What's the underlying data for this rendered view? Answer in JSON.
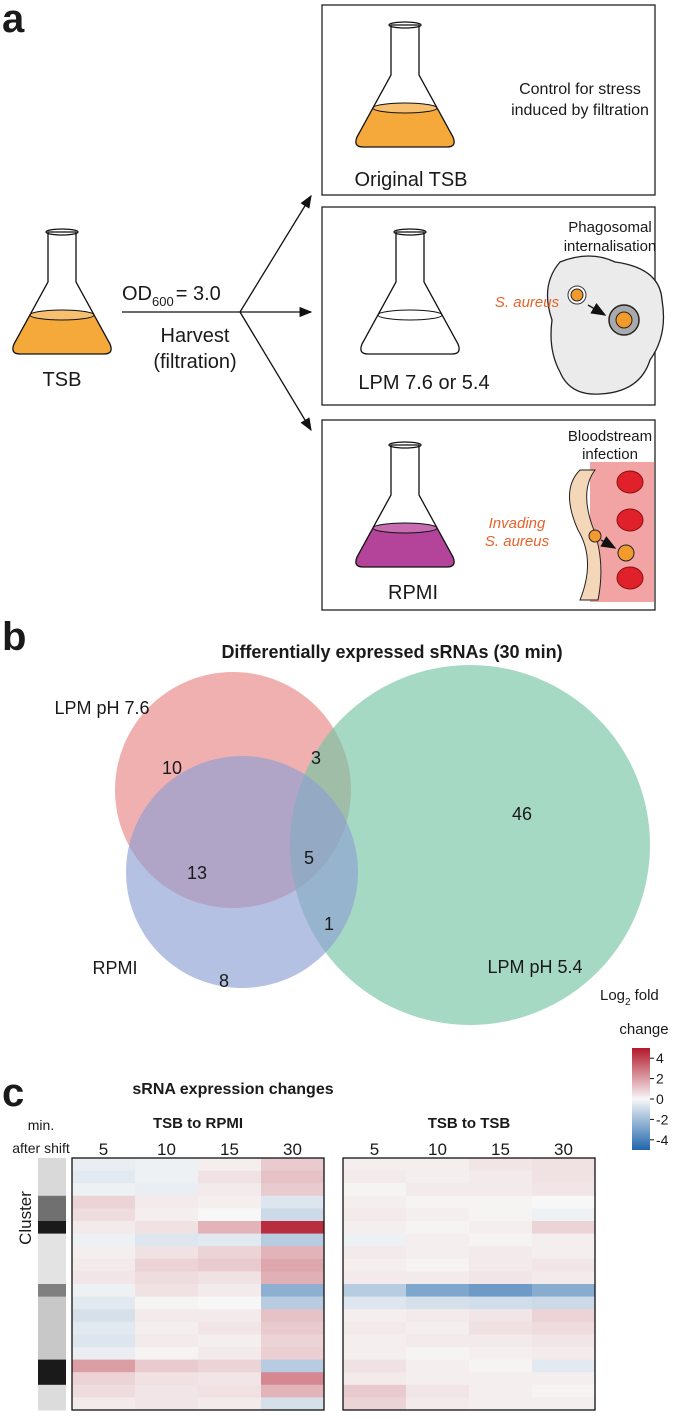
{
  "panel_labels": [
    "a",
    "b",
    "c"
  ],
  "panel_a": {
    "start_flask": "TSB",
    "od_text": "OD",
    "od_subscript": "600",
    "od_value": "= 3.0",
    "harvest": [
      "Harvest",
      "(filtration)"
    ],
    "box1": {
      "note": [
        "Control for stress",
        "induced by filtration"
      ],
      "flask": "Original TSB"
    },
    "box2": {
      "note": [
        "Phagosomal",
        "internalisation"
      ],
      "organism": "S. aureus",
      "flask": "LPM 7.6 or 5.4"
    },
    "box3": {
      "note": [
        "Bloodstream",
        "infection"
      ],
      "organism": [
        "Invading",
        "S. aureus"
      ],
      "flask": "RPMI"
    }
  },
  "chart_data": [
    {
      "type": "venn",
      "title": "Differentially expressed sRNAs (30 min)",
      "sets": [
        {
          "name": "LPM pH 7.6",
          "color": "#e88585"
        },
        {
          "name": "LPM pH 5.4",
          "color": "#74c4a4"
        },
        {
          "name": "RPMI",
          "color": "#8d9fd3"
        }
      ],
      "regions": [
        {
          "sets": [
            "LPM pH 7.6"
          ],
          "value": 10
        },
        {
          "sets": [
            "LPM pH 7.6",
            "LPM pH 5.4"
          ],
          "value": 3
        },
        {
          "sets": [
            "LPM pH 5.4"
          ],
          "value": 46
        },
        {
          "sets": [
            "LPM pH 7.6",
            "RPMI"
          ],
          "value": 13
        },
        {
          "sets": [
            "LPM pH 7.6",
            "LPM pH 5.4",
            "RPMI"
          ],
          "value": 5
        },
        {
          "sets": [
            "LPM pH 5.4",
            "RPMI"
          ],
          "value": 1
        },
        {
          "sets": [
            "RPMI"
          ],
          "value": 8
        }
      ]
    },
    {
      "type": "heatmap",
      "title": "sRNA expression changes",
      "column_header": [
        "min.",
        "after shift"
      ],
      "columns": [
        "5",
        "10",
        "15",
        "30"
      ],
      "row_axis_label": "Cluster",
      "row_cluster_colors": [
        "#d9d9d9",
        "#d9d9d9",
        "#d9d9d9",
        "#707070",
        "#707070",
        "#1a1a1a",
        "#e3e3e3",
        "#e3e3e3",
        "#e3e3e3",
        "#e3e3e3",
        "#808080",
        "#c8c8c8",
        "#c8c8c8",
        "#c8c8c8",
        "#c8c8c8",
        "#c8c8c8",
        "#1a1a1a",
        "#1a1a1a",
        "#dcdcdc",
        "#dcdcdc"
      ],
      "panels": [
        {
          "title": "TSB to RPMI",
          "values": [
            [
              -0.3,
              -0.2,
              0.2,
              1.0
            ],
            [
              -0.5,
              -0.2,
              0.5,
              1.2
            ],
            [
              -0.2,
              -0.3,
              0.3,
              1.0
            ],
            [
              0.8,
              0.3,
              0.2,
              -0.6
            ],
            [
              0.6,
              0.2,
              0.0,
              -1.0
            ],
            [
              0.3,
              0.5,
              1.5,
              4.5
            ],
            [
              -0.2,
              -0.6,
              -0.5,
              -1.5
            ],
            [
              0.2,
              0.5,
              0.8,
              1.5
            ],
            [
              0.3,
              0.8,
              1.0,
              1.8
            ],
            [
              0.4,
              0.6,
              0.5,
              1.6
            ],
            [
              -0.2,
              0.5,
              0.3,
              -2.5
            ],
            [
              -0.5,
              0.1,
              0.0,
              -1.5
            ],
            [
              -0.8,
              0.3,
              0.3,
              1.2
            ],
            [
              -0.5,
              0.2,
              0.4,
              1.0
            ],
            [
              -0.6,
              0.3,
              0.2,
              0.8
            ],
            [
              -0.3,
              0.1,
              0.3,
              0.9
            ],
            [
              2.0,
              1.0,
              0.8,
              -1.5
            ],
            [
              0.8,
              0.5,
              0.4,
              2.5
            ],
            [
              0.6,
              0.4,
              0.5,
              1.5
            ],
            [
              0.3,
              0.4,
              0.3,
              -0.8
            ]
          ]
        },
        {
          "title": "TSB to TSB",
          "values": [
            [
              0.2,
              0.2,
              0.4,
              0.5
            ],
            [
              0.3,
              0.2,
              0.3,
              0.5
            ],
            [
              0.1,
              0.3,
              0.3,
              0.4
            ],
            [
              0.2,
              0.1,
              0.1,
              0.0
            ],
            [
              0.3,
              0.2,
              0.1,
              -0.2
            ],
            [
              0.2,
              0.1,
              0.2,
              0.8
            ],
            [
              -0.2,
              0.2,
              0.1,
              0.2
            ],
            [
              0.3,
              0.2,
              0.3,
              0.2
            ],
            [
              0.2,
              0.1,
              0.3,
              0.4
            ],
            [
              0.3,
              0.3,
              0.4,
              0.3
            ],
            [
              -1.5,
              -2.8,
              -3.2,
              -2.6
            ],
            [
              -0.6,
              -0.8,
              -0.9,
              -1.0
            ],
            [
              0.2,
              0.3,
              0.4,
              0.8
            ],
            [
              0.3,
              0.2,
              0.5,
              0.6
            ],
            [
              0.2,
              0.3,
              0.3,
              0.4
            ],
            [
              0.2,
              0.1,
              0.2,
              0.3
            ],
            [
              0.5,
              0.2,
              0.1,
              -0.5
            ],
            [
              0.3,
              0.2,
              0.2,
              0.2
            ],
            [
              1.0,
              0.4,
              0.2,
              0.1
            ],
            [
              0.8,
              0.3,
              0.2,
              0.2
            ]
          ]
        }
      ],
      "colorbar_title": {
        "text": "Log",
        "subscript": "2",
        "after": "fold",
        "line2": "change"
      },
      "clim": [
        -5,
        5
      ],
      "cticks": [
        4,
        2,
        0,
        -2,
        -4
      ],
      "colors": [
        "#2166ac",
        "#f7f7f7",
        "#b2182b"
      ]
    }
  ]
}
